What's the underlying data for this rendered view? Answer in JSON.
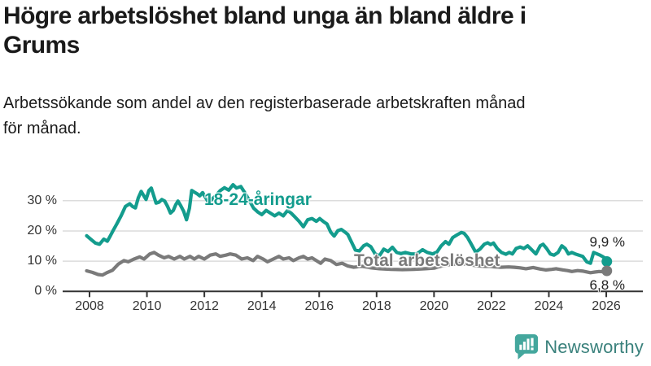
{
  "title_lines": [
    "Högre arbetslöshet bland unga än bland äldre i",
    "Grums"
  ],
  "subtitle_lines": [
    "Arbetssökande som andel av den registerbaserade arbetskraften månad",
    "för månad."
  ],
  "branding": {
    "name": "Newsworthy"
  },
  "colors": {
    "young": "#139c8d",
    "total": "#7a7a7a",
    "axis": "#333333",
    "grid": "#dcdcdc",
    "label_text": "#222222",
    "title": "#1a1a1a",
    "logo_bubble": "#44a79d",
    "logo_text": "#3a817c"
  },
  "chart_data": {
    "type": "line",
    "title": "Högre arbetslöshet bland unga än bland äldre i Grums",
    "subtitle": "Arbetssökande som andel av den registerbaserade arbetskraften månad för månad.",
    "xlabel": "",
    "ylabel": "",
    "grid": "horizontal",
    "legend_position": "inline-labels",
    "x_range": [
      2007.9,
      2026.1
    ],
    "ylim": [
      0,
      36
    ],
    "y_ticks": [
      {
        "label": "0 %",
        "value": 0
      },
      {
        "label": "10 %",
        "value": 10
      },
      {
        "label": "20 %",
        "value": 20
      },
      {
        "label": "30 %",
        "value": 30
      }
    ],
    "x_ticks": [
      {
        "label": "2008",
        "value": 2008
      },
      {
        "label": "2010",
        "value": 2010
      },
      {
        "label": "2012",
        "value": 2012
      },
      {
        "label": "2014",
        "value": 2014
      },
      {
        "label": "2016",
        "value": 2016
      },
      {
        "label": "2018",
        "value": 2018
      },
      {
        "label": "2020",
        "value": 2020
      },
      {
        "label": "2022",
        "value": 2022
      },
      {
        "label": "2024",
        "value": 2024
      },
      {
        "label": "2026",
        "value": 2026
      }
    ],
    "series": [
      {
        "name": "18-24-åringar",
        "color_key": "young",
        "end_label": "9,9 %",
        "end_value": 9.9,
        "points": [
          [
            2007.9,
            18.4
          ],
          [
            2008.05,
            17.2
          ],
          [
            2008.2,
            16.0
          ],
          [
            2008.35,
            15.6
          ],
          [
            2008.5,
            17.3
          ],
          [
            2008.62,
            16.6
          ],
          [
            2008.72,
            18.3
          ],
          [
            2008.82,
            20.1
          ],
          [
            2008.95,
            22.3
          ],
          [
            2009.1,
            25.0
          ],
          [
            2009.25,
            28.1
          ],
          [
            2009.4,
            29.0
          ],
          [
            2009.5,
            28.1
          ],
          [
            2009.6,
            27.6
          ],
          [
            2009.7,
            31.0
          ],
          [
            2009.8,
            33.1
          ],
          [
            2009.9,
            31.5
          ],
          [
            2009.97,
            30.4
          ],
          [
            2010.07,
            33.4
          ],
          [
            2010.15,
            34.2
          ],
          [
            2010.22,
            32.2
          ],
          [
            2010.32,
            29.2
          ],
          [
            2010.42,
            29.5
          ],
          [
            2010.52,
            30.4
          ],
          [
            2010.62,
            29.9
          ],
          [
            2010.72,
            28.1
          ],
          [
            2010.82,
            25.9
          ],
          [
            2010.92,
            26.8
          ],
          [
            2011.0,
            28.6
          ],
          [
            2011.08,
            29.9
          ],
          [
            2011.18,
            28.3
          ],
          [
            2011.28,
            26.5
          ],
          [
            2011.38,
            23.7
          ],
          [
            2011.48,
            27.5
          ],
          [
            2011.56,
            33.4
          ],
          [
            2011.66,
            32.8
          ],
          [
            2011.76,
            32.2
          ],
          [
            2011.84,
            31.6
          ],
          [
            2011.94,
            32.7
          ],
          [
            2012.05,
            30.9
          ],
          [
            2012.15,
            29.4
          ],
          [
            2012.27,
            30.5
          ],
          [
            2012.4,
            31.7
          ],
          [
            2012.55,
            33.3
          ],
          [
            2012.7,
            34.3
          ],
          [
            2012.85,
            33.5
          ],
          [
            2013.0,
            35.3
          ],
          [
            2013.12,
            34.2
          ],
          [
            2013.27,
            34.7
          ],
          [
            2013.42,
            32.5
          ],
          [
            2013.57,
            30.0
          ],
          [
            2013.72,
            27.5
          ],
          [
            2013.87,
            26.2
          ],
          [
            2014.0,
            25.4
          ],
          [
            2014.15,
            26.8
          ],
          [
            2014.3,
            25.9
          ],
          [
            2014.45,
            25.0
          ],
          [
            2014.6,
            25.9
          ],
          [
            2014.75,
            25.0
          ],
          [
            2014.9,
            26.8
          ],
          [
            2015.02,
            25.9
          ],
          [
            2015.16,
            24.6
          ],
          [
            2015.3,
            23.2
          ],
          [
            2015.45,
            21.4
          ],
          [
            2015.6,
            23.7
          ],
          [
            2015.75,
            24.1
          ],
          [
            2015.9,
            23.2
          ],
          [
            2016.02,
            24.1
          ],
          [
            2016.16,
            23.0
          ],
          [
            2016.27,
            22.3
          ],
          [
            2016.4,
            19.6
          ],
          [
            2016.52,
            18.3
          ],
          [
            2016.65,
            20.1
          ],
          [
            2016.77,
            20.5
          ],
          [
            2016.9,
            19.6
          ],
          [
            2017.0,
            18.8
          ],
          [
            2017.12,
            16.4
          ],
          [
            2017.26,
            13.7
          ],
          [
            2017.4,
            13.4
          ],
          [
            2017.55,
            15.1
          ],
          [
            2017.66,
            15.6
          ],
          [
            2017.8,
            14.8
          ],
          [
            2017.95,
            12.4
          ],
          [
            2018.1,
            11.8
          ],
          [
            2018.25,
            14.0
          ],
          [
            2018.4,
            13.2
          ],
          [
            2018.55,
            14.6
          ],
          [
            2018.7,
            12.9
          ],
          [
            2018.85,
            12.5
          ],
          [
            2019.0,
            12.9
          ],
          [
            2019.2,
            12.4
          ],
          [
            2019.4,
            12.4
          ],
          [
            2019.6,
            13.8
          ],
          [
            2019.77,
            12.9
          ],
          [
            2019.95,
            12.4
          ],
          [
            2020.1,
            13.0
          ],
          [
            2020.25,
            15.1
          ],
          [
            2020.4,
            16.5
          ],
          [
            2020.52,
            15.6
          ],
          [
            2020.65,
            17.8
          ],
          [
            2020.8,
            18.7
          ],
          [
            2020.95,
            19.5
          ],
          [
            2021.05,
            19.2
          ],
          [
            2021.17,
            17.8
          ],
          [
            2021.3,
            15.6
          ],
          [
            2021.45,
            13.0
          ],
          [
            2021.6,
            14.0
          ],
          [
            2021.75,
            15.6
          ],
          [
            2021.87,
            16.1
          ],
          [
            2021.97,
            15.5
          ],
          [
            2022.07,
            16.0
          ],
          [
            2022.2,
            14.2
          ],
          [
            2022.35,
            12.9
          ],
          [
            2022.5,
            12.3
          ],
          [
            2022.62,
            12.9
          ],
          [
            2022.73,
            12.4
          ],
          [
            2022.86,
            14.2
          ],
          [
            2023.0,
            14.7
          ],
          [
            2023.13,
            14.2
          ],
          [
            2023.26,
            15.1
          ],
          [
            2023.4,
            13.8
          ],
          [
            2023.55,
            12.4
          ],
          [
            2023.7,
            15.1
          ],
          [
            2023.8,
            15.6
          ],
          [
            2023.92,
            14.2
          ],
          [
            2024.05,
            12.4
          ],
          [
            2024.18,
            12.0
          ],
          [
            2024.32,
            12.9
          ],
          [
            2024.45,
            15.1
          ],
          [
            2024.57,
            14.2
          ],
          [
            2024.68,
            12.4
          ],
          [
            2024.8,
            12.9
          ],
          [
            2024.92,
            12.4
          ],
          [
            2025.05,
            12.0
          ],
          [
            2025.18,
            11.6
          ],
          [
            2025.32,
            9.8
          ],
          [
            2025.45,
            9.3
          ],
          [
            2025.56,
            12.9
          ],
          [
            2025.68,
            12.4
          ],
          [
            2025.78,
            12.0
          ],
          [
            2025.88,
            11.5
          ],
          [
            2025.96,
            11.0
          ],
          [
            2026.02,
            9.9
          ]
        ]
      },
      {
        "name": "Total arbetslöshet",
        "color_key": "total",
        "end_label": "6,8 %",
        "end_value": 6.8,
        "points": [
          [
            2007.9,
            6.8
          ],
          [
            2008.1,
            6.3
          ],
          [
            2008.3,
            5.6
          ],
          [
            2008.45,
            5.4
          ],
          [
            2008.6,
            6.2
          ],
          [
            2008.8,
            7.0
          ],
          [
            2009.0,
            9.0
          ],
          [
            2009.2,
            10.2
          ],
          [
            2009.35,
            9.8
          ],
          [
            2009.55,
            10.7
          ],
          [
            2009.75,
            11.4
          ],
          [
            2009.9,
            10.7
          ],
          [
            2010.1,
            12.4
          ],
          [
            2010.25,
            12.9
          ],
          [
            2010.4,
            12.0
          ],
          [
            2010.6,
            11.1
          ],
          [
            2010.75,
            11.6
          ],
          [
            2010.95,
            10.7
          ],
          [
            2011.15,
            11.6
          ],
          [
            2011.3,
            10.7
          ],
          [
            2011.5,
            11.6
          ],
          [
            2011.65,
            10.7
          ],
          [
            2011.8,
            11.6
          ],
          [
            2012.0,
            10.7
          ],
          [
            2012.2,
            12.0
          ],
          [
            2012.4,
            12.4
          ],
          [
            2012.55,
            11.6
          ],
          [
            2012.75,
            12.0
          ],
          [
            2012.9,
            12.4
          ],
          [
            2013.1,
            12.0
          ],
          [
            2013.3,
            10.7
          ],
          [
            2013.5,
            11.1
          ],
          [
            2013.7,
            10.2
          ],
          [
            2013.85,
            11.6
          ],
          [
            2014.05,
            10.7
          ],
          [
            2014.2,
            9.8
          ],
          [
            2014.4,
            10.7
          ],
          [
            2014.6,
            11.6
          ],
          [
            2014.75,
            10.7
          ],
          [
            2014.95,
            11.1
          ],
          [
            2015.1,
            10.2
          ],
          [
            2015.3,
            11.1
          ],
          [
            2015.45,
            11.6
          ],
          [
            2015.6,
            10.7
          ],
          [
            2015.75,
            11.1
          ],
          [
            2015.9,
            10.2
          ],
          [
            2016.05,
            9.3
          ],
          [
            2016.2,
            10.7
          ],
          [
            2016.4,
            10.2
          ],
          [
            2016.6,
            8.9
          ],
          [
            2016.8,
            9.3
          ],
          [
            2017.0,
            8.4
          ],
          [
            2017.2,
            8.0
          ],
          [
            2017.5,
            8.3
          ],
          [
            2017.8,
            7.8
          ],
          [
            2018.1,
            7.5
          ],
          [
            2018.5,
            7.3
          ],
          [
            2018.9,
            7.2
          ],
          [
            2019.3,
            7.3
          ],
          [
            2019.7,
            7.5
          ],
          [
            2020.0,
            7.7
          ],
          [
            2020.3,
            8.5
          ],
          [
            2020.6,
            8.9
          ],
          [
            2020.9,
            9.2
          ],
          [
            2021.1,
            9.0
          ],
          [
            2021.4,
            8.6
          ],
          [
            2021.7,
            8.3
          ],
          [
            2022.0,
            8.2
          ],
          [
            2022.3,
            8.0
          ],
          [
            2022.6,
            8.1
          ],
          [
            2022.8,
            8.0
          ],
          [
            2023.0,
            7.8
          ],
          [
            2023.2,
            7.5
          ],
          [
            2023.45,
            7.9
          ],
          [
            2023.7,
            7.4
          ],
          [
            2023.9,
            7.1
          ],
          [
            2024.1,
            7.3
          ],
          [
            2024.25,
            7.5
          ],
          [
            2024.5,
            7.1
          ],
          [
            2024.65,
            6.9
          ],
          [
            2024.8,
            6.6
          ],
          [
            2025.0,
            6.9
          ],
          [
            2025.2,
            6.7
          ],
          [
            2025.45,
            6.2
          ],
          [
            2025.6,
            6.4
          ],
          [
            2025.75,
            6.6
          ],
          [
            2025.9,
            6.5
          ],
          [
            2026.02,
            6.8
          ]
        ]
      }
    ]
  }
}
